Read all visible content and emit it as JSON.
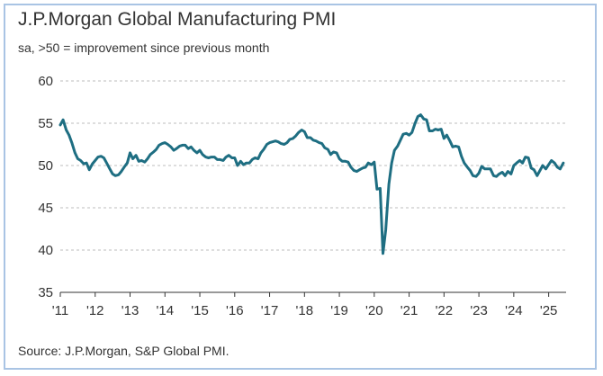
{
  "chart_data": {
    "type": "line",
    "title": "J.P.Morgan Global Manufacturing PMI",
    "subtitle": "sa, >50 = improvement since previous month",
    "source": "Source: J.P.Morgan, S&P Global PMI.",
    "xlabel": "",
    "ylabel": "",
    "xlim": [
      2011.0,
      2025.5
    ],
    "ylim": [
      35,
      60
    ],
    "y_ticks": [
      60,
      55,
      50,
      45,
      40,
      35
    ],
    "x_tick_values": [
      2011,
      2012,
      2013,
      2014,
      2015,
      2016,
      2017,
      2018,
      2019,
      2020,
      2021,
      2022,
      2023,
      2024,
      2025
    ],
    "x_tick_labels": [
      "'11",
      "'12",
      "'13",
      "'14",
      "'15",
      "'16",
      "'17",
      "'18",
      "'19",
      "'20",
      "'21",
      "'22",
      "'23",
      "'24",
      "'25"
    ],
    "grid": "horizontal",
    "line_color": "#1e6e82",
    "series": [
      {
        "name": "",
        "x": [
          2011.0,
          2011.08,
          2011.17,
          2011.25,
          2011.33,
          2011.42,
          2011.5,
          2011.58,
          2011.67,
          2011.75,
          2011.83,
          2011.92,
          2012.0,
          2012.08,
          2012.17,
          2012.25,
          2012.33,
          2012.42,
          2012.5,
          2012.58,
          2012.67,
          2012.75,
          2012.83,
          2012.92,
          2013.0,
          2013.08,
          2013.17,
          2013.25,
          2013.33,
          2013.42,
          2013.5,
          2013.58,
          2013.67,
          2013.75,
          2013.83,
          2013.92,
          2014.0,
          2014.08,
          2014.17,
          2014.25,
          2014.33,
          2014.42,
          2014.5,
          2014.58,
          2014.67,
          2014.75,
          2014.83,
          2014.92,
          2015.0,
          2015.08,
          2015.17,
          2015.25,
          2015.33,
          2015.42,
          2015.5,
          2015.58,
          2015.67,
          2015.75,
          2015.83,
          2015.92,
          2016.0,
          2016.08,
          2016.17,
          2016.25,
          2016.33,
          2016.42,
          2016.5,
          2016.58,
          2016.67,
          2016.75,
          2016.83,
          2016.92,
          2017.0,
          2017.08,
          2017.17,
          2017.25,
          2017.33,
          2017.42,
          2017.5,
          2017.58,
          2017.67,
          2017.75,
          2017.83,
          2017.92,
          2018.0,
          2018.08,
          2018.17,
          2018.25,
          2018.33,
          2018.42,
          2018.5,
          2018.58,
          2018.67,
          2018.75,
          2018.83,
          2018.92,
          2019.0,
          2019.08,
          2019.17,
          2019.25,
          2019.33,
          2019.42,
          2019.5,
          2019.58,
          2019.67,
          2019.75,
          2019.83,
          2019.92,
          2020.0,
          2020.08,
          2020.17,
          2020.25,
          2020.33,
          2020.42,
          2020.5,
          2020.58,
          2020.67,
          2020.75,
          2020.83,
          2020.92,
          2021.0,
          2021.08,
          2021.17,
          2021.25,
          2021.33,
          2021.42,
          2021.5,
          2021.58,
          2021.67,
          2021.75,
          2021.83,
          2021.92,
          2022.0,
          2022.08,
          2022.17,
          2022.25,
          2022.33,
          2022.42,
          2022.5,
          2022.58,
          2022.67,
          2022.75,
          2022.83,
          2022.92,
          2023.0,
          2023.08,
          2023.17,
          2023.25,
          2023.33,
          2023.42,
          2023.5,
          2023.58,
          2023.67,
          2023.75,
          2023.83,
          2023.92,
          2024.0,
          2024.08,
          2024.17,
          2024.25,
          2024.33,
          2024.42,
          2024.5,
          2024.58,
          2024.67,
          2024.75,
          2024.83,
          2024.92,
          2025.0,
          2025.08,
          2025.17,
          2025.25,
          2025.33,
          2025.42
        ],
        "values": [
          54.8,
          55.4,
          54.2,
          53.6,
          52.7,
          51.5,
          50.8,
          50.6,
          50.2,
          50.3,
          49.5,
          50.2,
          50.6,
          51.0,
          51.1,
          50.9,
          50.3,
          49.6,
          49.0,
          48.8,
          48.9,
          49.3,
          49.8,
          50.3,
          51.5,
          50.8,
          51.2,
          50.5,
          50.6,
          50.4,
          50.8,
          51.3,
          51.6,
          51.9,
          52.4,
          52.6,
          52.7,
          52.5,
          52.2,
          51.8,
          52.0,
          52.3,
          52.4,
          52.4,
          52.0,
          52.2,
          51.8,
          51.5,
          51.8,
          51.3,
          51.0,
          50.9,
          51.0,
          51.0,
          50.7,
          50.7,
          50.6,
          51.0,
          51.2,
          50.9,
          50.9,
          50.0,
          50.5,
          50.1,
          50.3,
          50.3,
          50.7,
          50.9,
          50.8,
          51.5,
          51.9,
          52.5,
          52.7,
          52.8,
          52.9,
          52.8,
          52.6,
          52.5,
          52.7,
          53.1,
          53.2,
          53.5,
          53.9,
          54.2,
          54.0,
          53.3,
          53.3,
          53.0,
          52.9,
          52.7,
          52.6,
          52.1,
          51.9,
          51.3,
          51.6,
          51.5,
          50.8,
          50.5,
          50.5,
          50.4,
          49.8,
          49.4,
          49.3,
          49.5,
          49.7,
          49.8,
          50.3,
          50.1,
          50.4,
          47.2,
          47.3,
          39.6,
          42.4,
          47.8,
          50.3,
          51.8,
          52.3,
          53.0,
          53.7,
          53.8,
          53.6,
          53.9,
          55.0,
          55.8,
          56.0,
          55.5,
          55.4,
          54.1,
          54.1,
          54.3,
          54.2,
          54.3,
          53.2,
          53.6,
          52.9,
          52.2,
          52.3,
          52.2,
          51.1,
          50.3,
          49.8,
          49.4,
          48.8,
          48.7,
          49.1,
          49.9,
          49.6,
          49.6,
          49.6,
          48.8,
          48.7,
          49.0,
          49.2,
          48.8,
          49.3,
          49.0,
          50.0,
          50.3,
          50.6,
          50.3,
          51.0,
          50.9,
          49.7,
          49.5,
          48.8,
          49.4,
          50.0,
          49.6,
          50.1,
          50.6,
          50.3,
          49.8,
          49.6,
          50.3
        ]
      }
    ]
  }
}
